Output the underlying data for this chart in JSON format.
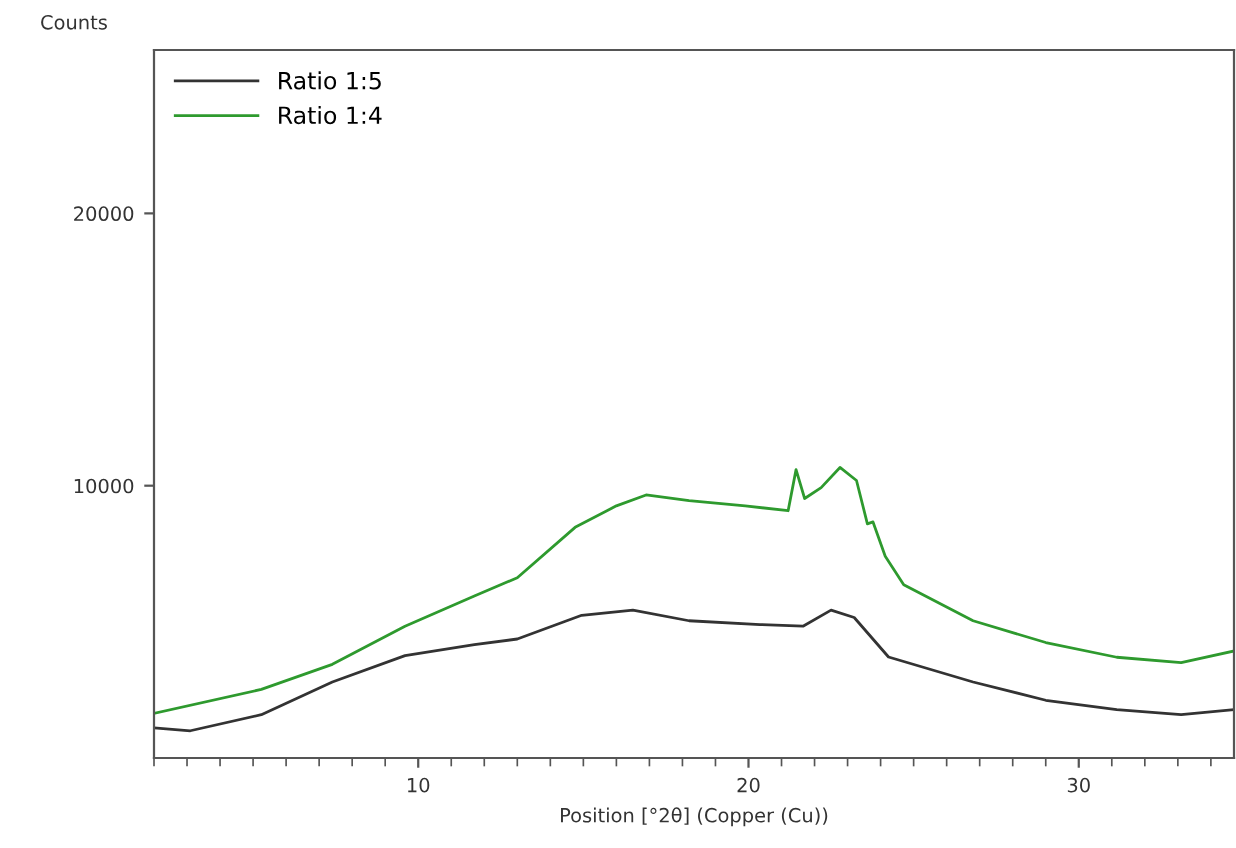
{
  "chart_data": {
    "type": "line",
    "ylabel": "Counts",
    "xlabel": "Position [°2θ] (Copper (Cu))",
    "xlim": [
      2,
      34.7
    ],
    "ylim": [
      0,
      26000
    ],
    "xticks": [
      10,
      20,
      30
    ],
    "yticks": [
      10000,
      20000
    ],
    "grid": false,
    "legend": "top left",
    "marker": "none",
    "line_style": "solid",
    "series": [
      {
        "name": "Ratio 1:5",
        "color": "#333333",
        "x": [
          2.0,
          3.1,
          5.25,
          7.4,
          9.6,
          11.7,
          13.0,
          14.95,
          16.5,
          18.2,
          20.35,
          21.65,
          22.5,
          23.2,
          24.24,
          26.8,
          29.0,
          31.15,
          33.1,
          34.7
        ],
        "values": [
          1110,
          1000,
          1590,
          2790,
          3760,
          4160,
          4370,
          5240,
          5430,
          5040,
          4900,
          4840,
          5430,
          5160,
          3710,
          2790,
          2120,
          1780,
          1590,
          1780
        ]
      },
      {
        "name": "Ratio 1:4",
        "color": "#2e9a2e",
        "x": [
          2.0,
          5.25,
          7.4,
          9.6,
          11.7,
          13.0,
          14.75,
          16.0,
          16.9,
          18.2,
          19.9,
          21.2,
          21.44,
          21.7,
          22.2,
          22.77,
          23.27,
          23.6,
          23.77,
          24.14,
          24.7,
          26.8,
          29.0,
          31.15,
          33.1,
          34.7
        ],
        "values": [
          1640,
          2520,
          3440,
          4840,
          5950,
          6620,
          8470,
          9260,
          9660,
          9450,
          9260,
          9080,
          10590,
          9530,
          9930,
          10670,
          10190,
          8600,
          8670,
          7410,
          6360,
          5040,
          4240,
          3700,
          3500,
          3930
        ]
      }
    ]
  }
}
